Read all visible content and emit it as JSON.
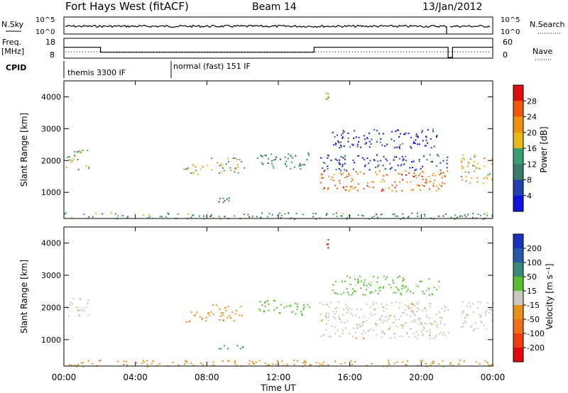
{
  "header": {
    "station": "Fort Hays West (fitACF)",
    "beam": "Beam 14",
    "date": "13/Jan/2012"
  },
  "strips": {
    "nsky_label": "N.Sky",
    "nsky_ticks": [
      "10^5",
      "10^0"
    ],
    "nsearch_label": "N.Search",
    "nsearch_ticks": [
      "10^5",
      "10^0"
    ],
    "freq_label": "Freq.",
    "freq_unit": "[MHz]",
    "freq_ticks": [
      "18",
      "8"
    ],
    "nave_label": "Nave",
    "nave_ticks": [
      "60",
      "0"
    ],
    "cpid_label": "CPID",
    "cpid_modes": [
      {
        "label": "themis 3300 IF",
        "start_h": 0,
        "end_h": 6
      },
      {
        "label": "normal (fast) 151 IF",
        "start_h": 6,
        "end_h": 24
      }
    ],
    "freq_series": [
      {
        "h": 0,
        "mhz": 13.5
      },
      {
        "h": 2.05,
        "mhz": 13.5
      },
      {
        "h": 2.05,
        "mhz": 10.8
      },
      {
        "h": 14.0,
        "mhz": 10.8
      },
      {
        "h": 14.0,
        "mhz": 13.5
      },
      {
        "h": 21.5,
        "mhz": 13.5
      },
      {
        "h": 21.5,
        "mhz": 8
      },
      {
        "h": 21.75,
        "mhz": 8
      },
      {
        "h": 21.75,
        "mhz": 13.5
      },
      {
        "h": 24,
        "mhz": 13.5
      }
    ]
  },
  "panels": {
    "power": {
      "ylabel": "Slant Range [km]",
      "yticks": [
        "4000",
        "3000",
        "2000",
        "1000"
      ],
      "colorbar_label": "Power [dB]",
      "colorbar_ticks": [
        "28",
        "24",
        "20",
        "16",
        "12",
        "8",
        "4"
      ],
      "colorbar_colors": [
        "#e01010",
        "#f05810",
        "#f09010",
        "#e8b818",
        "#38a070",
        "#3a7a6a",
        "#2040b0",
        "#1010e0"
      ]
    },
    "velocity": {
      "ylabel": "Slant Range [km]",
      "yticks": [
        "4000",
        "3000",
        "2000",
        "1000"
      ],
      "colorbar_label": "Velocity [m s⁻¹]",
      "colorbar_ticks": [
        "200",
        "100",
        "50",
        "15",
        "-15",
        "-50",
        "-100",
        "-200"
      ],
      "colorbar_colors": [
        "#1a30c0",
        "#2a58a8",
        "#3a8a78",
        "#58c030",
        "#c8c8c0",
        "#e89018",
        "#f07018",
        "#f03a10",
        "#e00808"
      ]
    }
  },
  "xaxis": {
    "label": "Time UT",
    "ticks": [
      "00:00",
      "04:00",
      "08:00",
      "12:00",
      "16:00",
      "20:00",
      "00:00"
    ]
  },
  "chart_data": {
    "type": "heatmap",
    "x_unit": "hour UT",
    "x_range": [
      0,
      24
    ],
    "y_unit": "km",
    "y_range": [
      180,
      4500
    ],
    "scatter_bands": [
      {
        "start_h": 0.1,
        "end_h": 1.4,
        "range_km": [
          1700,
          2350
        ],
        "power_db": 18,
        "velocity": -15
      },
      {
        "start_h": 6.7,
        "end_h": 8.2,
        "range_km": [
          1550,
          1900
        ],
        "power_db": 20,
        "velocity": -50
      },
      {
        "start_h": 8.2,
        "end_h": 10.1,
        "range_km": [
          1600,
          2100
        ],
        "power_db": 18,
        "velocity": -50
      },
      {
        "start_h": 10.8,
        "end_h": 13.7,
        "range_km": [
          1750,
          2250
        ],
        "power_db": 12,
        "velocity": 15
      },
      {
        "start_h": 8.5,
        "end_h": 10.2,
        "range_km": [
          700,
          860
        ],
        "power_db": 12,
        "velocity": 50
      },
      {
        "start_h": 14.3,
        "end_h": 21.5,
        "range_km": [
          1050,
          1700
        ],
        "power_db": 26,
        "velocity": -15
      },
      {
        "start_h": 14.3,
        "end_h": 21.5,
        "range_km": [
          1700,
          2200
        ],
        "power_db": 8,
        "velocity": -15
      },
      {
        "start_h": 15.0,
        "end_h": 21.0,
        "range_km": [
          2400,
          3000
        ],
        "power_db": 6,
        "velocity": 15
      },
      {
        "start_h": 22.2,
        "end_h": 24.0,
        "range_km": [
          1300,
          2200
        ],
        "power_db": 22,
        "velocity": -15
      },
      {
        "start_h": 14.65,
        "end_h": 14.85,
        "range_km": [
          3850,
          4250
        ],
        "power_db": 20,
        "velocity": -200
      },
      {
        "start_h": 0,
        "end_h": 24,
        "range_km": [
          180,
          380
        ],
        "power_db": 14,
        "velocity": -50
      }
    ]
  }
}
